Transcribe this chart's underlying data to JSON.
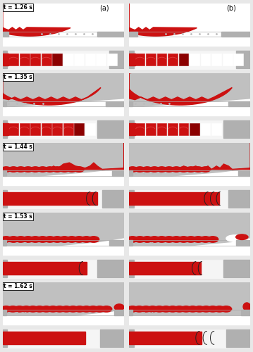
{
  "figure_bg": "#e8e8e8",
  "panel_bg": "#ffffff",
  "red_color": "#cc1111",
  "dark_red": "#8b0000",
  "gray_light": "#c0c0c0",
  "gray_stencil": "#b0b0b0",
  "time_labels": [
    "t = 1.26 s",
    "t = 1.35 s",
    "t = 1.44 s",
    "t = 1.53 s",
    "t = 1.62 s"
  ],
  "col_labels": [
    "(a)",
    "(b)"
  ]
}
